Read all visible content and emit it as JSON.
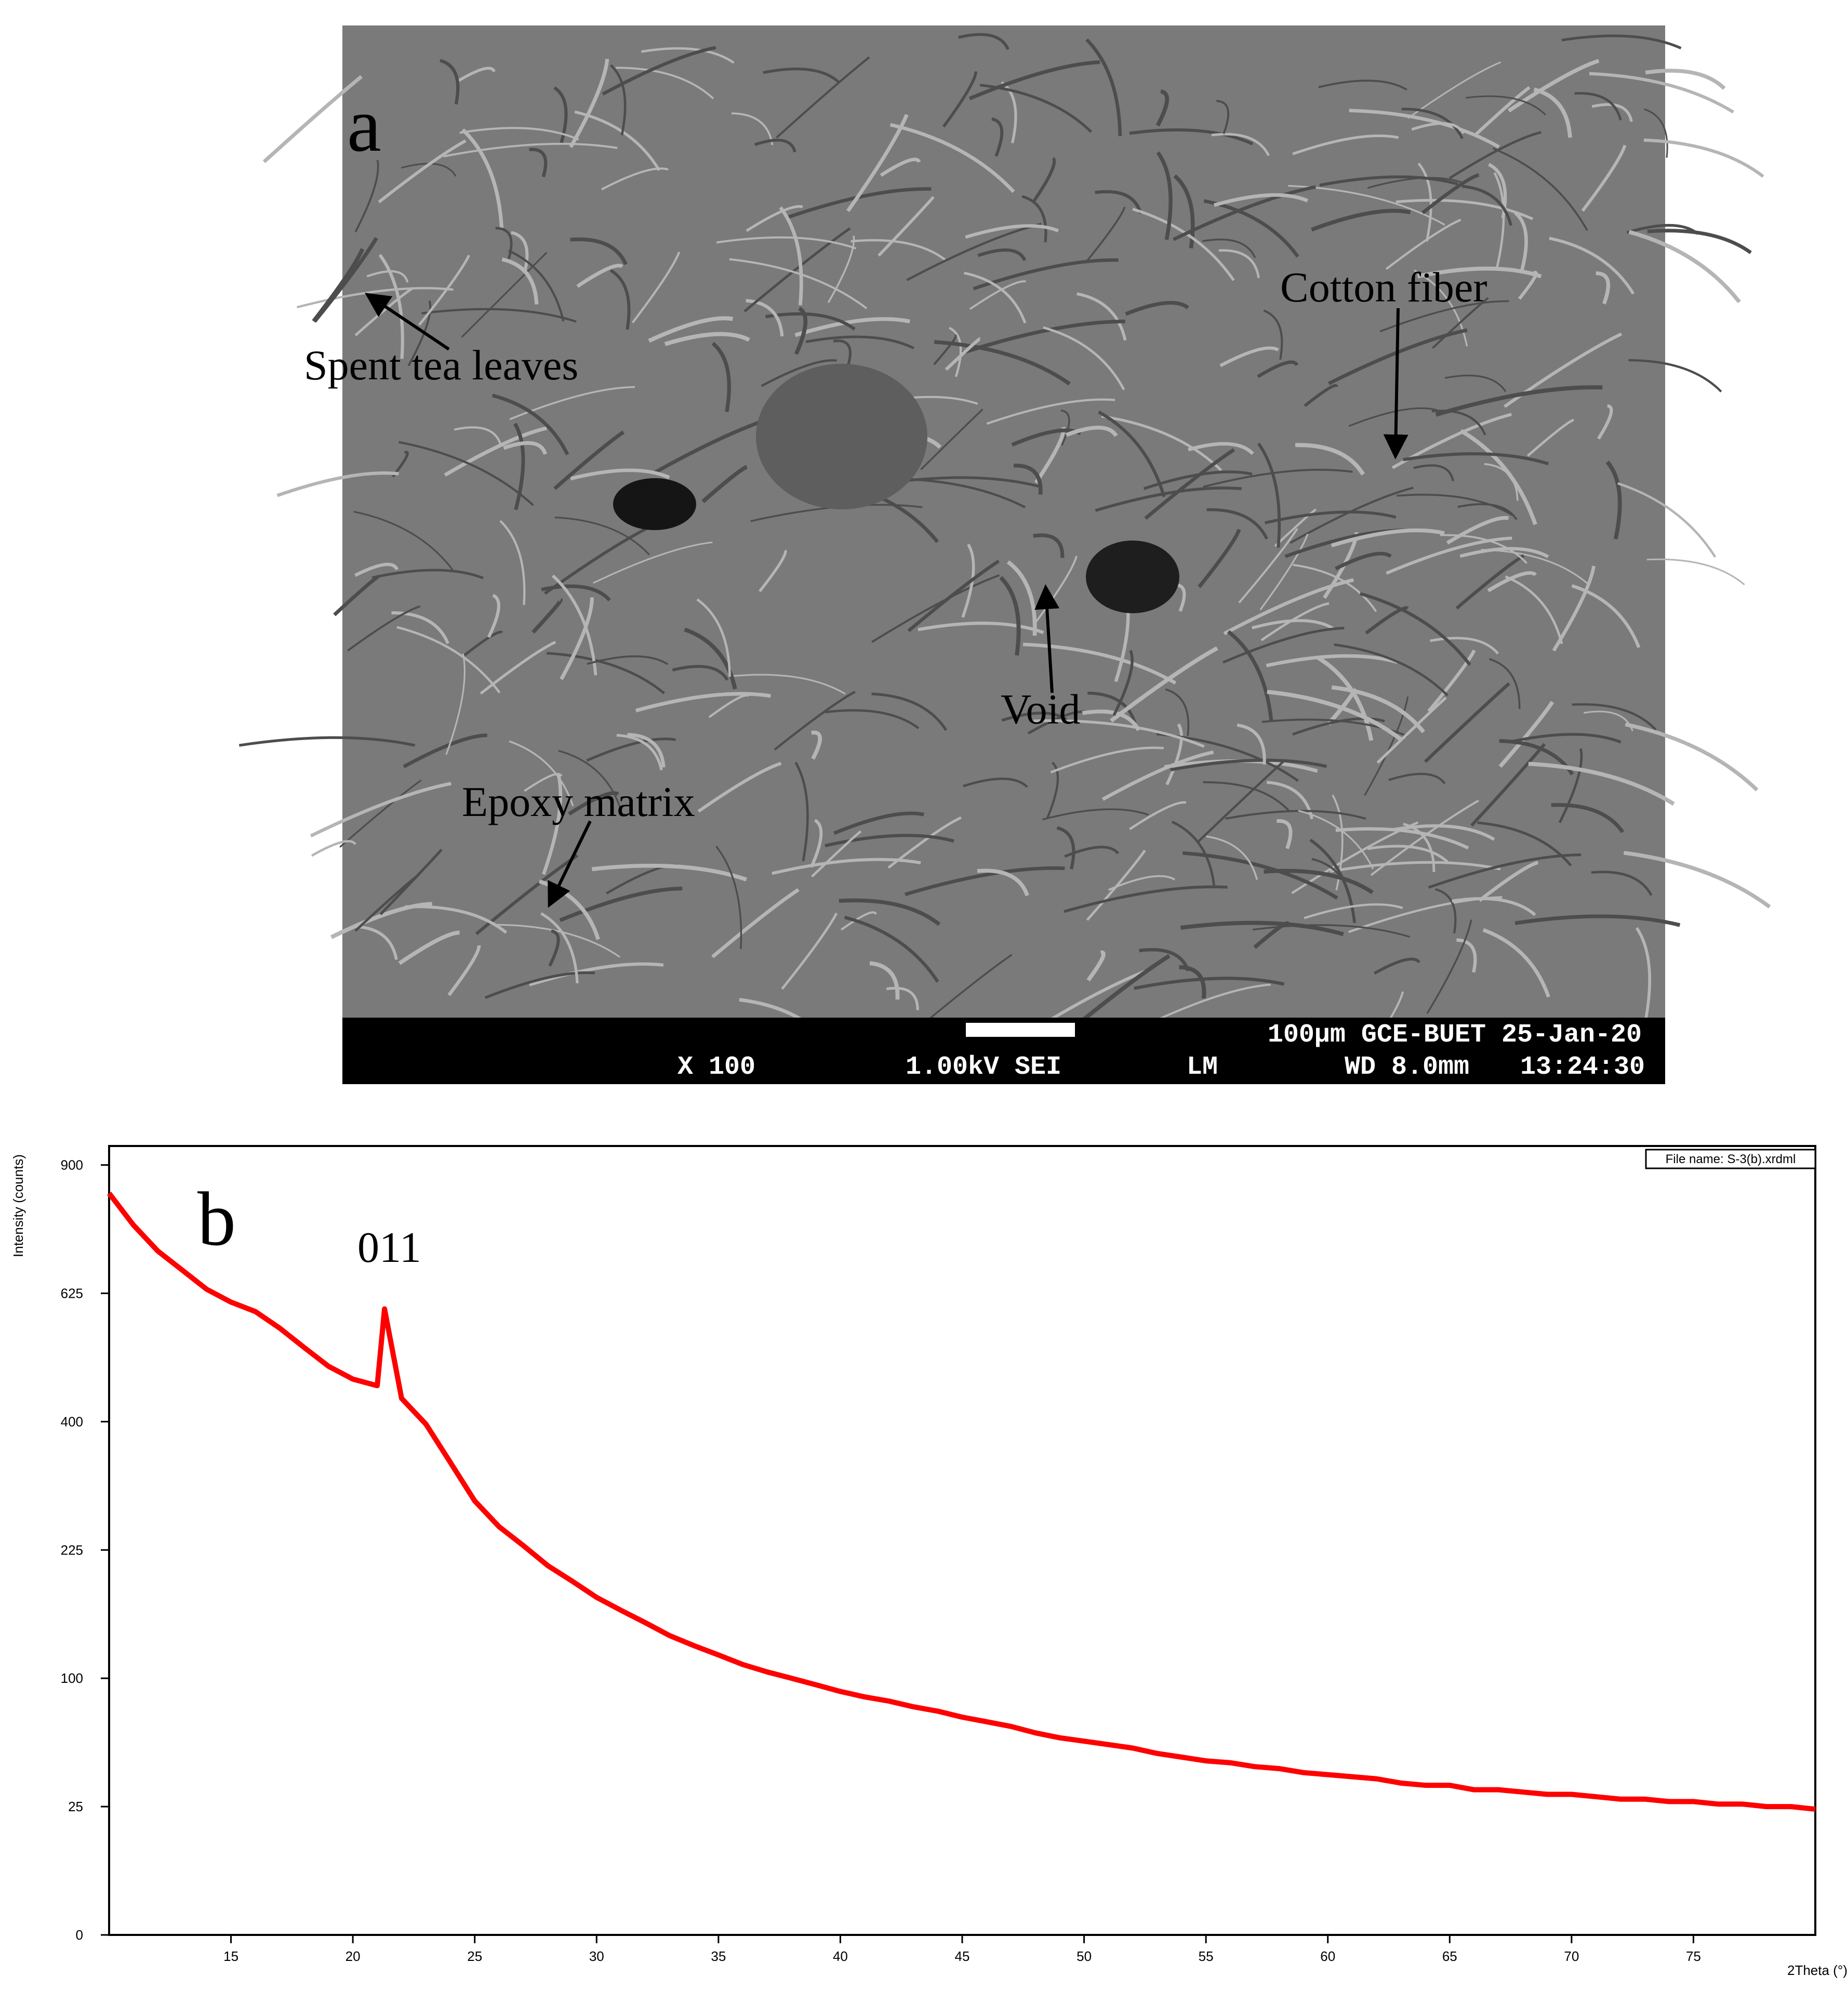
{
  "panel_a": {
    "label": "a",
    "annotations": [
      "Spent tea leaves",
      "Cotton fiber",
      "Void",
      "Epoxy matrix"
    ],
    "info_bar": {
      "line1": "100µm GCE-BUET 25-Jan-20",
      "magnification": "X 100",
      "voltage": "1.00kV SEI",
      "mode": "LM",
      "working_distance": "WD 8.0mm",
      "time": "13:24:30"
    }
  },
  "chart_data": {
    "type": "line",
    "panel_label": "b",
    "peak_label": "011",
    "legend_text": "File name: S-3(b).xrdml",
    "xlabel": "2Theta (°)",
    "ylabel": "Intensity (counts)",
    "x": [
      10,
      11,
      12,
      13,
      14,
      15,
      16,
      17,
      18,
      19,
      20,
      21,
      21.3,
      22,
      23,
      24,
      25,
      26,
      27,
      28,
      29,
      30,
      31,
      32,
      33,
      34,
      35,
      36,
      37,
      38,
      39,
      40,
      41,
      42,
      43,
      44,
      45,
      46,
      47,
      48,
      49,
      50,
      51,
      52,
      53,
      54,
      55,
      56,
      57,
      58,
      59,
      60,
      61,
      62,
      63,
      64,
      65,
      66,
      67,
      68,
      69,
      70,
      71,
      72,
      73,
      74,
      75,
      76,
      77,
      78,
      79,
      80
    ],
    "series": [
      {
        "name": "S-3(b)",
        "color": "#ff0000",
        "values": [
          835,
          765,
          710,
          671,
          633,
          608,
          590,
          559,
          524,
          491,
          469,
          458,
          595,
          437,
          396,
          339,
          286,
          253,
          230,
          207,
          190,
          173,
          160,
          148,
          136,
          127,
          119,
          111,
          105,
          100,
          95,
          90,
          86,
          83,
          79,
          76,
          72,
          69,
          66,
          62,
          59,
          57,
          55,
          53,
          50,
          48,
          46,
          45,
          43,
          42,
          40,
          39,
          38,
          37,
          35,
          34,
          34,
          32,
          32,
          31,
          30,
          30,
          29,
          28,
          28,
          27,
          27,
          26,
          26,
          25,
          25,
          24
        ]
      }
    ],
    "xlim": [
      10,
      80
    ],
    "xticks": [
      15,
      20,
      25,
      30,
      35,
      40,
      45,
      50,
      55,
      60,
      65,
      70,
      75
    ],
    "ylim": [
      0,
      945
    ],
    "yticks": [
      0,
      25,
      100,
      225,
      400,
      625,
      900
    ],
    "yscale": "sqrt"
  }
}
